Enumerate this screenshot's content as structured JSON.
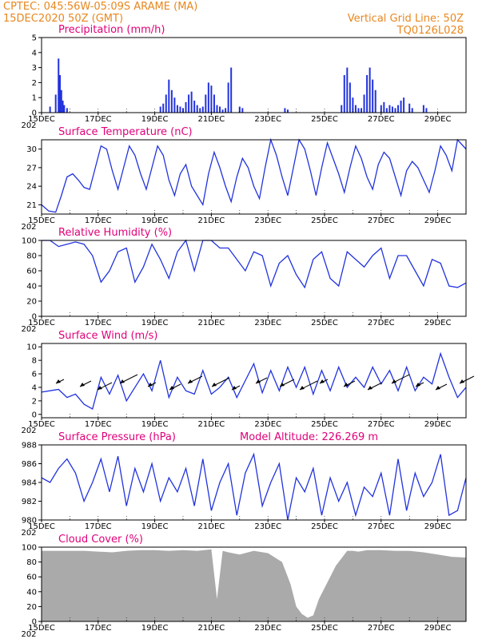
{
  "header": {
    "line1_left": "CPTEC:   045:56W-05:09S   ARAME (MA)",
    "line2_left": "15DEC2020 50Z (GMT)",
    "line1_right": "Vertical Grid Line: 50Z",
    "line2_right": "TQ0126L028"
  },
  "x_ticks": [
    "15DEC",
    "17DEC",
    "19DEC",
    "21DEC",
    "23DEC",
    "25DEC",
    "27DEC",
    "29DEC"
  ],
  "x_year_label": "202",
  "colors": {
    "header": "#e8871e",
    "title": "#e0007a",
    "line": "#2233dd",
    "bars": "#2233dd",
    "cloud": "#aaaaaa"
  },
  "chart_data": [
    {
      "type": "bar",
      "title": "Precipitation (mm/h)",
      "ylim": [
        0,
        5
      ],
      "yticks": [
        0,
        1,
        2,
        3,
        4,
        5
      ],
      "x_range_days": [
        0,
        15
      ],
      "series": [
        {
          "x": [
            0.3,
            0.5,
            0.6,
            0.65,
            0.7,
            0.75,
            0.8,
            0.9,
            4.2,
            4.3,
            4.4,
            4.5,
            4.6,
            4.7,
            4.8,
            4.9,
            5.0,
            5.1,
            5.2,
            5.3,
            5.4,
            5.5,
            5.6,
            5.7,
            5.8,
            5.9,
            6.0,
            6.1,
            6.2,
            6.3,
            6.4,
            6.5,
            6.6,
            6.7,
            7.0,
            7.1,
            8.6,
            8.7,
            10.6,
            10.7,
            10.8,
            10.9,
            11.0,
            11.1,
            11.2,
            11.3,
            11.4,
            11.5,
            11.6,
            11.7,
            11.8,
            12.0,
            12.1,
            12.2,
            12.3,
            12.4,
            12.5,
            12.6,
            12.7,
            12.8,
            13.0,
            13.1,
            13.5,
            13.6
          ],
          "values": [
            0.4,
            1.2,
            3.6,
            2.5,
            1.5,
            0.8,
            0.5,
            0.3,
            0.4,
            0.6,
            1.2,
            2.2,
            1.5,
            1.0,
            0.5,
            0.4,
            0.3,
            0.7,
            1.2,
            1.4,
            0.8,
            0.5,
            0.3,
            0.4,
            1.2,
            2.0,
            1.8,
            1.2,
            0.5,
            0.4,
            0.2,
            0.3,
            2.0,
            3.0,
            0.4,
            0.3,
            0.3,
            0.2,
            0.5,
            2.5,
            3.0,
            2.0,
            1.0,
            0.5,
            0.3,
            0.3,
            1.2,
            2.5,
            3.0,
            2.2,
            1.5,
            0.5,
            0.7,
            0.3,
            0.5,
            0.4,
            0.3,
            0.5,
            0.8,
            1.0,
            0.6,
            0.3,
            0.5,
            0.3
          ]
        }
      ]
    },
    {
      "type": "line",
      "title": "Surface Temperature (nC)",
      "ylim": [
        19.5,
        31.5
      ],
      "yticks": [
        21,
        24,
        27,
        30
      ],
      "x_range_days": [
        0,
        15
      ],
      "series": [
        {
          "x": [
            0,
            0.25,
            0.5,
            0.7,
            0.9,
            1.1,
            1.3,
            1.5,
            1.7,
            1.9,
            2.1,
            2.3,
            2.5,
            2.7,
            2.9,
            3.1,
            3.3,
            3.5,
            3.7,
            3.9,
            4.1,
            4.3,
            4.5,
            4.7,
            4.9,
            5.1,
            5.3,
            5.5,
            5.7,
            5.9,
            6.1,
            6.3,
            6.5,
            6.7,
            6.9,
            7.1,
            7.3,
            7.5,
            7.7,
            7.9,
            8.1,
            8.3,
            8.5,
            8.7,
            8.9,
            9.1,
            9.3,
            9.5,
            9.7,
            9.9,
            10.1,
            10.3,
            10.5,
            10.7,
            10.9,
            11.1,
            11.3,
            11.5,
            11.7,
            11.9,
            12.1,
            12.3,
            12.5,
            12.7,
            12.9,
            13.1,
            13.3,
            13.5,
            13.7,
            13.9,
            14.1,
            14.3,
            14.5,
            14.7,
            15.0
          ],
          "values": [
            21,
            20,
            19.8,
            22.5,
            25.5,
            26,
            25,
            23.8,
            23.5,
            27,
            30.5,
            30,
            26.5,
            23.5,
            27,
            30.5,
            29,
            26,
            23.5,
            27,
            30.5,
            29,
            25,
            22.5,
            26,
            27.5,
            24,
            22.5,
            21,
            26,
            29.5,
            27,
            24,
            21.5,
            25.5,
            28.5,
            27,
            24,
            22,
            27,
            31.5,
            29,
            25.5,
            22.5,
            27,
            31.5,
            30,
            26.5,
            22.5,
            27,
            31,
            28.5,
            26,
            23,
            27,
            30.5,
            28.5,
            25.5,
            23.5,
            27.5,
            29.5,
            28.5,
            25.5,
            22.5,
            26.5,
            28,
            27,
            25,
            23,
            26.5,
            30.5,
            29,
            26.5,
            31.5,
            30
          ]
        }
      ]
    },
    {
      "type": "line",
      "title": "Relative Humidity (%)",
      "ylim": [
        0,
        100
      ],
      "yticks": [
        0,
        20,
        40,
        60,
        80,
        100
      ],
      "x_range_days": [
        0,
        15
      ],
      "series": [
        {
          "x": [
            0,
            0.3,
            0.6,
            0.9,
            1.2,
            1.5,
            1.8,
            2.1,
            2.4,
            2.7,
            3.0,
            3.3,
            3.6,
            3.9,
            4.2,
            4.5,
            4.8,
            5.1,
            5.4,
            5.7,
            6.0,
            6.3,
            6.6,
            6.9,
            7.2,
            7.5,
            7.8,
            8.1,
            8.4,
            8.7,
            9.0,
            9.3,
            9.6,
            9.9,
            10.2,
            10.5,
            10.8,
            11.1,
            11.4,
            11.7,
            12.0,
            12.3,
            12.6,
            12.9,
            13.2,
            13.5,
            13.8,
            14.1,
            14.4,
            14.7,
            15.0
          ],
          "values": [
            100,
            100,
            92,
            95,
            98,
            95,
            80,
            45,
            60,
            85,
            90,
            45,
            65,
            95,
            75,
            50,
            85,
            100,
            60,
            100,
            100,
            90,
            90,
            75,
            60,
            85,
            80,
            40,
            70,
            80,
            55,
            38,
            75,
            85,
            50,
            40,
            85,
            75,
            65,
            80,
            90,
            50,
            80,
            80,
            60,
            40,
            75,
            70,
            40,
            38,
            44
          ]
        }
      ]
    },
    {
      "type": "line",
      "title": "Surface Wind (m/s)",
      "ylim": [
        -0.5,
        10.5
      ],
      "yticks": [
        0,
        2,
        4,
        6,
        8,
        10
      ],
      "x_range_days": [
        0,
        15
      ],
      "series": [
        {
          "x": [
            0,
            0.3,
            0.6,
            0.9,
            1.2,
            1.5,
            1.8,
            2.1,
            2.4,
            2.7,
            3.0,
            3.3,
            3.6,
            3.9,
            4.2,
            4.5,
            4.8,
            5.1,
            5.4,
            5.7,
            6.0,
            6.3,
            6.6,
            6.9,
            7.2,
            7.5,
            7.8,
            8.1,
            8.4,
            8.7,
            9.0,
            9.3,
            9.6,
            9.9,
            10.2,
            10.5,
            10.8,
            11.1,
            11.4,
            11.7,
            12.0,
            12.3,
            12.6,
            12.9,
            13.2,
            13.5,
            13.8,
            14.1,
            14.4,
            14.7,
            15.0
          ],
          "values": [
            3.3,
            3.5,
            3.7,
            2.5,
            3.0,
            1.5,
            0.8,
            5.5,
            3.0,
            5.8,
            2.0,
            4.0,
            6.0,
            3.5,
            8.0,
            2.5,
            5.5,
            3.5,
            3.0,
            6.5,
            3.0,
            4.0,
            5.5,
            2.5,
            5.0,
            7.5,
            3.2,
            6.5,
            3.5,
            7.0,
            4.0,
            7.0,
            3.0,
            6.5,
            3.5,
            7.0,
            4.0,
            5.5,
            4.0,
            7.0,
            4.5,
            6.5,
            3.5,
            7.0,
            3.5,
            5.5,
            4.5,
            9.0,
            5.5,
            2.5,
            4.0
          ]
        }
      ]
    },
    {
      "type": "line",
      "title": "Surface Pressure (hPa)",
      "annotation": "Model Altitude: 226.269  m",
      "ylim": [
        980,
        988
      ],
      "yticks": [
        980,
        982,
        984,
        986,
        988
      ],
      "x_range_days": [
        0,
        15
      ],
      "series": [
        {
          "x": [
            0,
            0.3,
            0.6,
            0.9,
            1.2,
            1.5,
            1.8,
            2.1,
            2.4,
            2.7,
            3.0,
            3.3,
            3.6,
            3.9,
            4.2,
            4.5,
            4.8,
            5.1,
            5.4,
            5.7,
            6.0,
            6.3,
            6.6,
            6.9,
            7.2,
            7.5,
            7.8,
            8.1,
            8.4,
            8.7,
            9.0,
            9.3,
            9.6,
            9.9,
            10.2,
            10.5,
            10.8,
            11.1,
            11.4,
            11.7,
            12.0,
            12.3,
            12.6,
            12.9,
            13.2,
            13.5,
            13.8,
            14.1,
            14.4,
            14.7,
            15.0
          ],
          "values": [
            984.5,
            984,
            985.5,
            986.5,
            985,
            982,
            984,
            986.5,
            983,
            986.8,
            981.5,
            985.5,
            983,
            986,
            982,
            984.5,
            983,
            985.5,
            981.5,
            986.5,
            981,
            984,
            986,
            980.5,
            985,
            987,
            981.5,
            984,
            986,
            980,
            984.5,
            983,
            985.5,
            980.5,
            984.5,
            982,
            984,
            980.5,
            983.5,
            982.5,
            985,
            980.5,
            986.5,
            981,
            985,
            982.5,
            984,
            987,
            980.5,
            981,
            984.5
          ]
        }
      ]
    },
    {
      "type": "area",
      "title": "Cloud Cover (%)",
      "ylim": [
        0,
        100
      ],
      "yticks": [
        0,
        20,
        40,
        60,
        80,
        100
      ],
      "x_range_days": [
        0,
        15
      ],
      "series": [
        {
          "x": [
            0,
            0.5,
            1,
            1.5,
            2,
            2.5,
            3,
            3.5,
            4,
            4.5,
            5,
            5.5,
            6,
            6.2,
            6.4,
            6.6,
            7,
            7.5,
            8,
            8.5,
            8.8,
            9,
            9.2,
            9.4,
            9.6,
            9.8,
            10,
            10.2,
            10.4,
            10.6,
            10.8,
            11,
            11.2,
            11.5,
            12,
            12.5,
            13,
            13.5,
            14,
            14.5,
            15
          ],
          "values": [
            95,
            95,
            95,
            95,
            94,
            93,
            95,
            96,
            96,
            95,
            96,
            95,
            97,
            30,
            95,
            93,
            90,
            95,
            92,
            80,
            50,
            20,
            10,
            5,
            8,
            30,
            45,
            60,
            75,
            85,
            95,
            95,
            94,
            96,
            96,
            95,
            95,
            93,
            90,
            87,
            86
          ]
        }
      ]
    }
  ]
}
